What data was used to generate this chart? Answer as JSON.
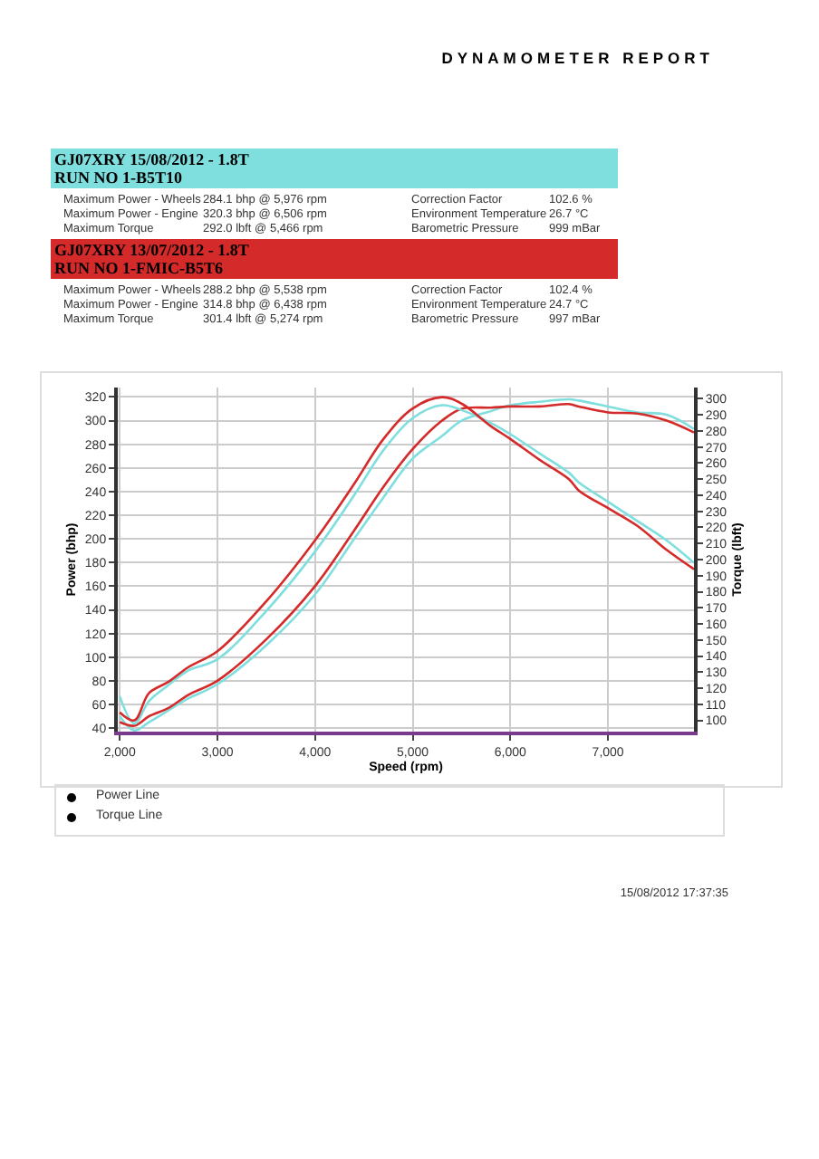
{
  "chart_data": {
    "type": "line",
    "title": "DYNAMOMETER REPORT",
    "xlabel": "Speed (rpm)",
    "ylabel": "Power (bhp)",
    "y2label": "Torque (lbft)",
    "annotations": [
      "GJ07XRY 15/08/2012 - 1.8T",
      "RUN NO 1-B5T10",
      "Maximum Power - Wheels",
      "284.1  bhp @ 5,976 rpm",
      "Correction Factor",
      "102.6 %",
      "Maximum Power - Engine",
      "320.3  bhp @ 6,506 rpm",
      "Environment Temperature",
      "26.7 °C",
      "Maximum Torque",
      "292.0   lbft @ 5,466 rpm",
      "Barometric Pressure",
      "999 mBar",
      "GJ07XRY 13/07/2012 - 1.8T",
      "RUN NO 1-FMIC-B5T6",
      "Maximum Power - Wheels",
      "288.2  bhp @ 5,538 rpm",
      "Correction Factor",
      "102.4 %",
      "Maximum Power - Engine",
      "314.8  bhp @ 6,438 rpm",
      "Environment Temperature",
      "24.7 °C",
      "Maximum Torque",
      "301.4   lbft @ 5,274 rpm",
      "Barometric Pressure",
      "997 mBar",
      "Power Line",
      "Torque Line",
      "15/08/2012 17:37:35"
    ],
    "x": [
      2000,
      2150,
      2300,
      2500,
      2700,
      3000,
      3500,
      4000,
      4400,
      4700,
      5000,
      5300,
      5500,
      5800,
      6000,
      6300,
      6600,
      6700,
      7000,
      7300,
      7600,
      7880
    ],
    "series": [
      {
        "color": "#7fdede",
        "values": [
          50,
          38,
          45,
          55,
          65,
          77,
          110,
          153,
          200,
          235,
          268,
          287,
          300,
          308,
          313,
          316,
          318,
          317,
          312,
          307,
          305,
          293
        ]
      },
      {
        "color": "#7fdede",
        "axis": "y2",
        "values": [
          115,
          98,
          112,
          122,
          131,
          138,
          168,
          205,
          240,
          268,
          288,
          296,
          293,
          285,
          278,
          266,
          254,
          248,
          236,
          224,
          212,
          198
        ]
      },
      {
        "color": "#d42a2a",
        "values": [
          45,
          42,
          50,
          57,
          68,
          80,
          115,
          160,
          207,
          244,
          276,
          300,
          310,
          311,
          312,
          312,
          314,
          312,
          307,
          306,
          300,
          290
        ]
      },
      {
        "color": "#d42a2a",
        "axis": "y2",
        "values": [
          105,
          100,
          117,
          124,
          133,
          143,
          174,
          212,
          247,
          275,
          294,
          301,
          297,
          283,
          275,
          262,
          250,
          243,
          232,
          221,
          206,
          194
        ]
      }
    ],
    "xlim": [
      1980,
      7880
    ],
    "xticks": [
      {
        "value": 2000,
        "label": "2,000"
      },
      {
        "value": 3000,
        "label": "3,000"
      },
      {
        "value": 4000,
        "label": "4,000"
      },
      {
        "value": 5000,
        "label": "5,000"
      },
      {
        "value": 6000,
        "label": "6,000"
      },
      {
        "value": 7000,
        "label": "7,000"
      }
    ],
    "ylim": [
      37,
      328
    ],
    "yticks": [
      40,
      60,
      80,
      100,
      120,
      140,
      160,
      180,
      200,
      220,
      240,
      260,
      280,
      300,
      320
    ],
    "y2lim": [
      93,
      307
    ],
    "y2ticks": [
      100,
      110,
      120,
      130,
      140,
      150,
      160,
      170,
      180,
      190,
      200,
      210,
      220,
      230,
      240,
      250,
      260,
      270,
      280,
      290,
      300
    ],
    "grid": true,
    "line_style": "solid",
    "marker": "none"
  }
}
